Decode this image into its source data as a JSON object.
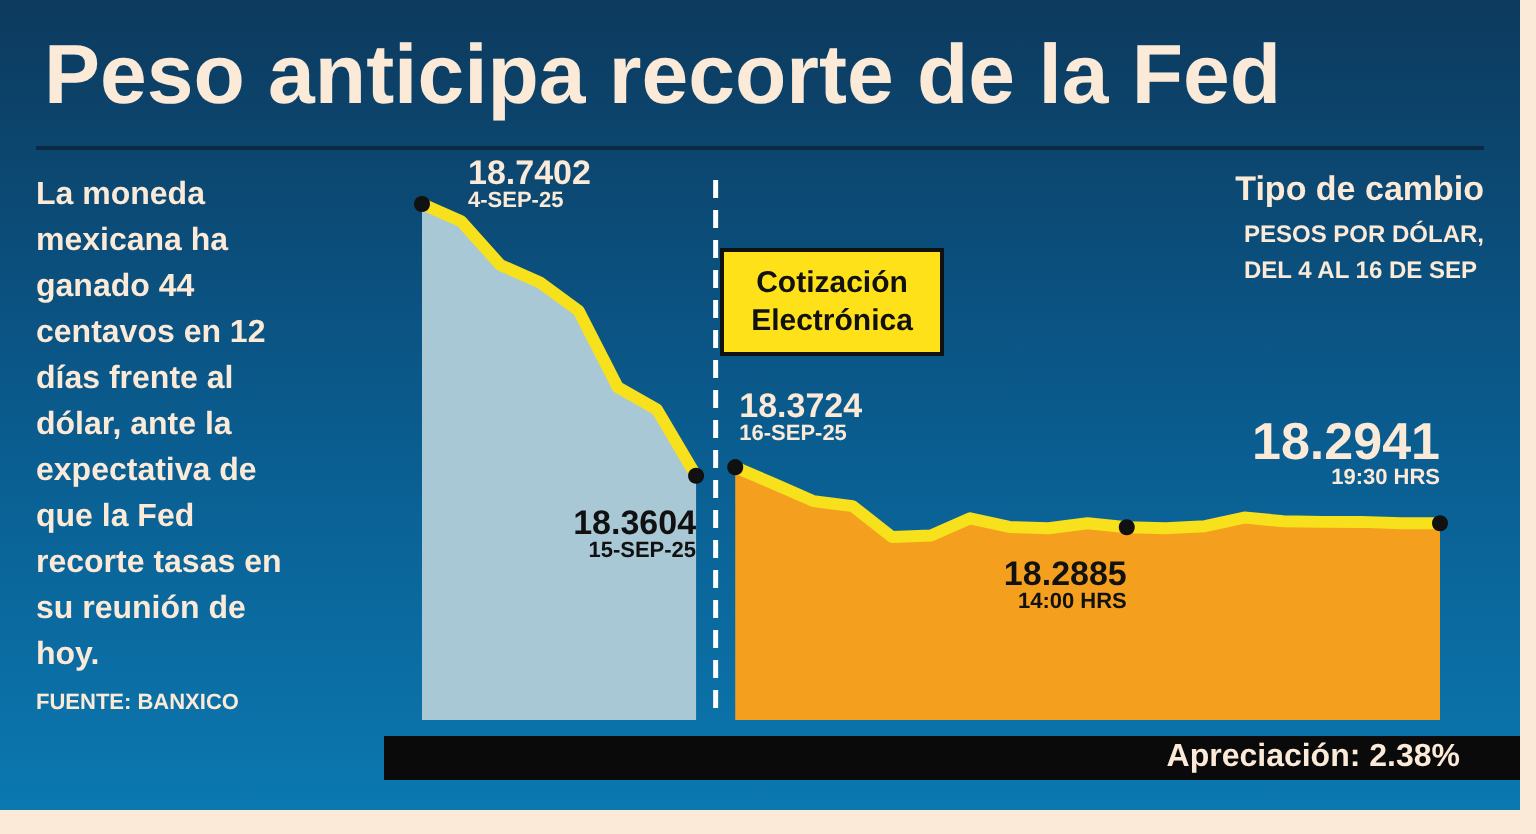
{
  "chart_data": {
    "type": "area",
    "title": "Peso anticipa recorte de la Fed",
    "subtitle": "Tipo de cambio",
    "annotations": [
      "La moneda mexicana ha ganado 44 centavos en 12 días frente al dólar, ante la expectativa de que la Fed recorte tasas en su reunión de hoy.",
      "FUENTE: BANXICO",
      "Cotización Electrónica",
      "PESOS POR DÓLAR,\nDEL 4 AL 16 DE SEP",
      "Apreciación: 2.38%"
    ],
    "categories": [
      null,
      null,
      null,
      null,
      null,
      null,
      null,
      null,
      null,
      null,
      null,
      null,
      null,
      null,
      null,
      null,
      null,
      null,
      null,
      null,
      null,
      null,
      null,
      null,
      null,
      null,
      null
    ],
    "series": [
      {
        "color": "#a8c8d6",
        "values": [
          18.7402,
          18.716,
          18.655,
          18.631,
          18.591,
          18.484,
          18.453,
          18.3604,
          null,
          null,
          null,
          null,
          null,
          null,
          null,
          null,
          null,
          null,
          null,
          null,
          null,
          null,
          null,
          null,
          null,
          null,
          null
        ],
        "value_labels": [
          "18.7402\n4-SEP-25",
          null,
          null,
          null,
          null,
          null,
          null,
          "18.3604\n15-SEP-25",
          null,
          null,
          null,
          null,
          null,
          null,
          null,
          null,
          null,
          null,
          null,
          null,
          null,
          null,
          null,
          null,
          null,
          null,
          null
        ]
      },
      {
        "color": "#f4a01e",
        "values": [
          null,
          null,
          null,
          null,
          null,
          null,
          null,
          null,
          18.3724,
          18.349,
          18.325,
          18.318,
          18.275,
          18.277,
          18.301,
          18.289,
          18.287,
          18.294,
          18.2885,
          18.287,
          18.29,
          18.302,
          18.297,
          18.296,
          18.296,
          18.294,
          18.2941
        ],
        "value_labels": [
          null,
          null,
          null,
          null,
          null,
          null,
          null,
          null,
          "18.3724\n16-SEP-25",
          null,
          null,
          null,
          null,
          null,
          null,
          null,
          null,
          null,
          "18.2885\n14:00 HRS",
          null,
          null,
          null,
          null,
          null,
          null,
          null,
          "18.2941\n19:30 HRS"
        ]
      }
    ],
    "grid": false,
    "tick_labels": false
  }
}
